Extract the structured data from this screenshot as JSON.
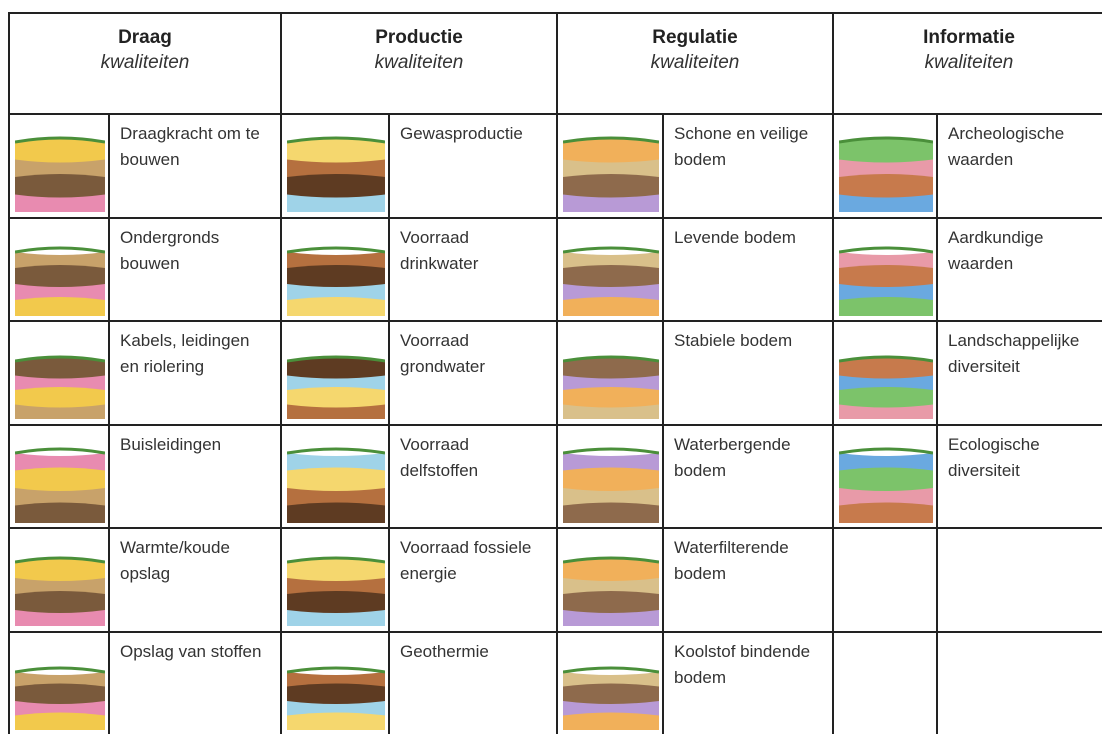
{
  "columns": [
    {
      "title": "Draag",
      "subtitle": "kwaliteiten",
      "items": [
        "Draagkracht om te bouwen",
        "Ondergronds bouwen",
        "Kabels, leidingen en riolering",
        "Buisleidingen",
        "Warmte/koude opslag",
        "Opslag van stoffen"
      ]
    },
    {
      "title": "Productie",
      "subtitle": "kwaliteiten",
      "items": [
        "Gewasproductie",
        "Voorraad drinkwater",
        "Voorraad grondwater",
        "Voorraad delfstoffen",
        "Voorraad fossiele energie",
        "Geothermie"
      ]
    },
    {
      "title": "Regulatie",
      "subtitle": "kwaliteiten",
      "items": [
        "Schone en veilige bodem",
        "Levende bodem",
        "Stabiele bodem",
        "Waterbergende bodem",
        "Waterfilterende bodem",
        "Koolstof bindende bodem"
      ]
    },
    {
      "title": "Informatie",
      "subtitle": "kwaliteiten",
      "items": [
        "Archeologische waarden",
        "Aardkundige waarden",
        "Landschappelijke diversiteit",
        "Ecologische diversiteit"
      ]
    }
  ]
}
